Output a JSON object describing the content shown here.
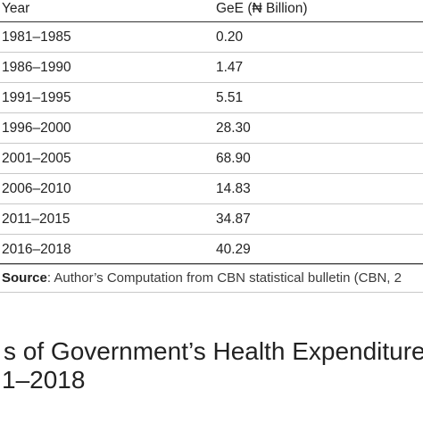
{
  "table": {
    "headers": {
      "year": "Year",
      "gee": "GeE (₦ Billion)"
    },
    "rows": [
      {
        "year": "1981–1985",
        "gee": "0.20"
      },
      {
        "year": "1986–1990",
        "gee": "1.47"
      },
      {
        "year": "1991–1995",
        "gee": "5.51"
      },
      {
        "year": "1996–2000",
        "gee": "28.30"
      },
      {
        "year": "2001–2005",
        "gee": "68.90"
      },
      {
        "year": "2006–2010",
        "gee": "14.83"
      },
      {
        "year": "2011–2015",
        "gee": "34.87"
      },
      {
        "year": "2016–2018",
        "gee": "40.29"
      }
    ]
  },
  "source": {
    "label": "Source",
    "text": ": Author’s Computation from CBN statistical bulletin (CBN, 2"
  },
  "caption": {
    "line1": "s of Government’s Health Expenditure",
    "line2": "1–2018"
  }
}
